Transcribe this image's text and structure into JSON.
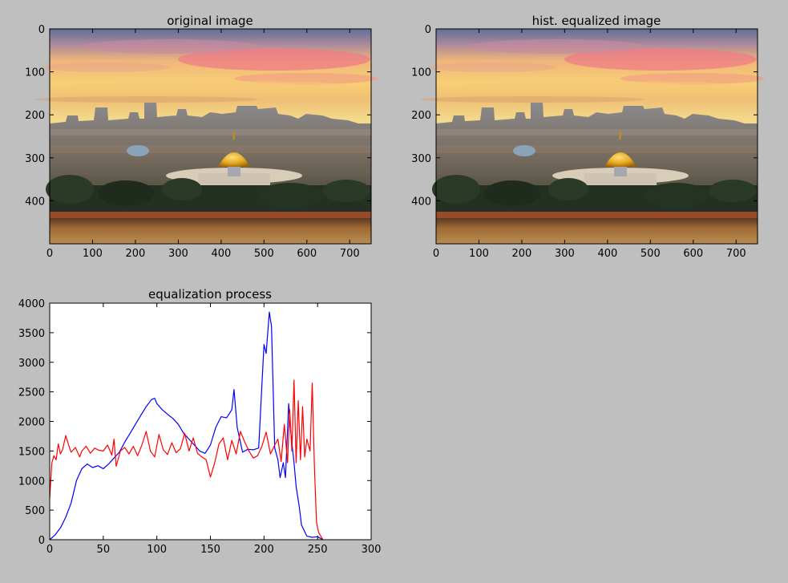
{
  "figure": {
    "background": "#bfbfbf"
  },
  "images": [
    {
      "title": "original image",
      "xticks": [
        0,
        100,
        200,
        300,
        400,
        500,
        600,
        700
      ],
      "yticks": [
        0,
        100,
        200,
        300,
        400
      ],
      "xlim": [
        0,
        750
      ],
      "ylim": [
        500,
        0
      ]
    },
    {
      "title": "hist. equalized image",
      "xticks": [
        0,
        100,
        200,
        300,
        400,
        500,
        600,
        700
      ],
      "yticks": [
        0,
        100,
        200,
        300,
        400
      ],
      "xlim": [
        0,
        750
      ],
      "ylim": [
        500,
        0
      ]
    }
  ],
  "chart_data": {
    "type": "line",
    "title": "equalization process",
    "xlabel": "",
    "ylabel": "",
    "xlim": [
      0,
      300
    ],
    "ylim": [
      0,
      4000
    ],
    "xticks": [
      0,
      50,
      100,
      150,
      200,
      250,
      300
    ],
    "yticks": [
      0,
      500,
      1000,
      1500,
      2000,
      2500,
      3000,
      3500,
      4000
    ],
    "grid": false,
    "series": [
      {
        "color": "#0000ff",
        "x": [
          0,
          5,
          10,
          15,
          20,
          25,
          30,
          35,
          40,
          45,
          50,
          55,
          60,
          65,
          70,
          75,
          80,
          85,
          90,
          95,
          98,
          100,
          105,
          110,
          115,
          120,
          125,
          130,
          135,
          140,
          145,
          150,
          155,
          160,
          165,
          170,
          172,
          175,
          180,
          185,
          190,
          195,
          200,
          202,
          205,
          207,
          210,
          213,
          215,
          218,
          220,
          223,
          225,
          228,
          230,
          233,
          235,
          240,
          245,
          250,
          255
        ],
        "y": [
          0,
          80,
          200,
          380,
          620,
          1000,
          1200,
          1280,
          1220,
          1250,
          1200,
          1280,
          1380,
          1480,
          1650,
          1800,
          1950,
          2100,
          2250,
          2370,
          2390,
          2300,
          2200,
          2120,
          2050,
          1950,
          1800,
          1700,
          1600,
          1500,
          1460,
          1600,
          1900,
          2080,
          2060,
          2200,
          2540,
          1900,
          1480,
          1530,
          1520,
          1550,
          3300,
          3150,
          3850,
          3600,
          1550,
          1350,
          1050,
          1300,
          1050,
          2300,
          1800,
          1300,
          900,
          550,
          250,
          60,
          40,
          50,
          0
        ]
      },
      {
        "color": "#ff0000",
        "x": [
          0,
          2,
          4,
          6,
          8,
          10,
          12,
          15,
          18,
          20,
          24,
          28,
          30,
          34,
          38,
          42,
          46,
          50,
          54,
          58,
          60,
          62,
          66,
          70,
          74,
          78,
          82,
          86,
          90,
          94,
          98,
          102,
          106,
          110,
          114,
          118,
          122,
          126,
          130,
          134,
          138,
          142,
          146,
          150,
          154,
          158,
          162,
          166,
          170,
          174,
          178,
          182,
          186,
          190,
          194,
          198,
          202,
          206,
          210,
          213,
          216,
          219,
          222,
          224,
          226,
          228,
          230,
          232,
          234,
          236,
          238,
          240,
          243,
          245,
          247,
          249,
          251,
          253,
          255
        ],
        "y": [
          700,
          1300,
          1420,
          1350,
          1620,
          1450,
          1520,
          1760,
          1580,
          1480,
          1560,
          1400,
          1500,
          1580,
          1460,
          1550,
          1510,
          1500,
          1600,
          1430,
          1700,
          1240,
          1500,
          1560,
          1450,
          1580,
          1420,
          1600,
          1830,
          1500,
          1400,
          1780,
          1520,
          1440,
          1640,
          1470,
          1540,
          1800,
          1500,
          1720,
          1460,
          1400,
          1350,
          1060,
          1300,
          1620,
          1720,
          1350,
          1680,
          1450,
          1830,
          1650,
          1500,
          1380,
          1420,
          1580,
          1820,
          1450,
          1600,
          1700,
          1320,
          1950,
          1300,
          2200,
          1500,
          2700,
          1300,
          2350,
          1350,
          2250,
          1400,
          1700,
          1500,
          2650,
          1250,
          300,
          120,
          60,
          0
        ]
      }
    ]
  }
}
